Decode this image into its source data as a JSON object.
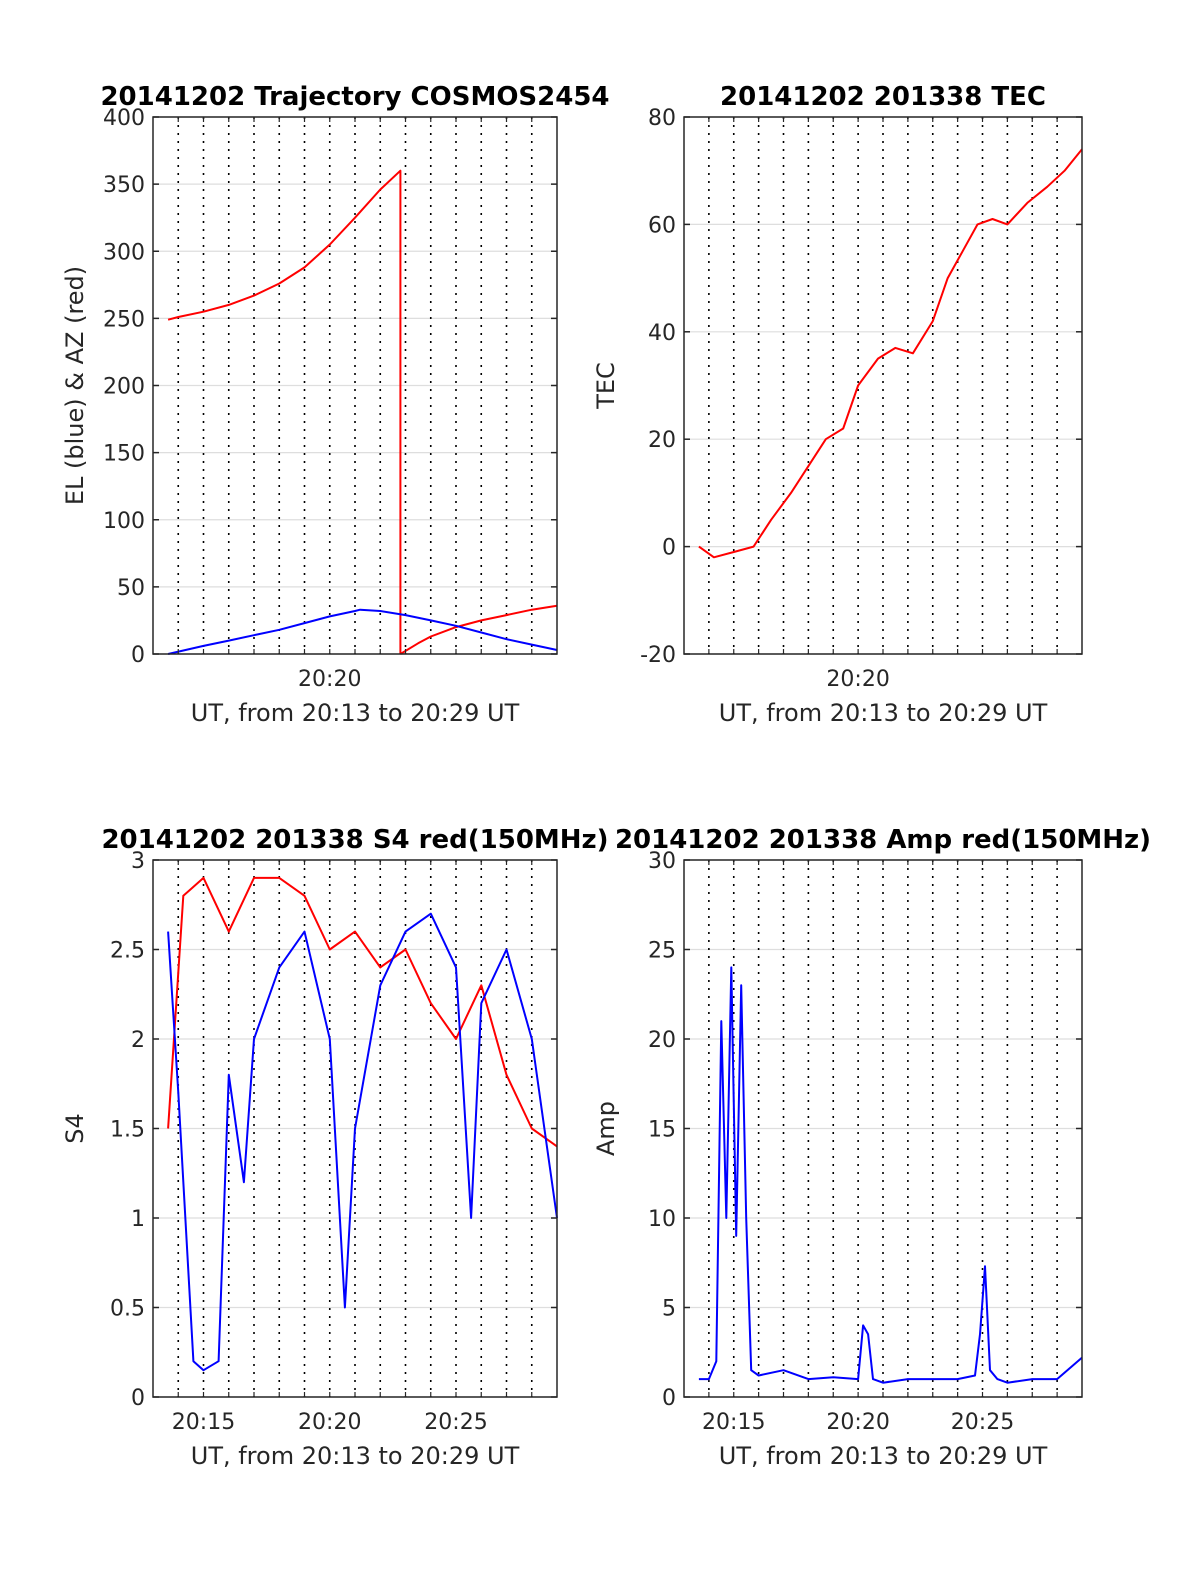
{
  "chart_data": [
    {
      "id": "trajectory",
      "type": "line",
      "title": "20141202 Trajectory COSMOS2454",
      "xlabel": "UT, from 20:13 to 20:29 UT",
      "ylabel": "EL (blue) & AZ (red)",
      "xlim": [
        "20:13",
        "20:29"
      ],
      "ylim": [
        0,
        400
      ],
      "yticks": [
        0,
        50,
        100,
        150,
        200,
        250,
        300,
        350,
        400
      ],
      "xticks": [
        {
          "at": "20:20",
          "label": "20:20"
        }
      ],
      "grid": true,
      "series": [
        {
          "color": "#ff0000",
          "x": [
            "20:13.6",
            "20:14",
            "20:15",
            "20:16",
            "20:17",
            "20:18",
            "20:19",
            "20:20",
            "20:21",
            "20:22",
            "20:22.8",
            "20:22.8"
          ],
          "y": [
            249,
            251,
            255,
            260,
            267,
            276,
            288,
            305,
            325,
            346,
            360,
            0
          ]
        },
        {
          "color": "#ff0000",
          "x": [
            "20:22.8",
            "20:23.5",
            "20:24",
            "20:25",
            "20:26",
            "20:27",
            "20:28",
            "20:29"
          ],
          "y": [
            0,
            8,
            13,
            20,
            25,
            29,
            33,
            36
          ]
        },
        {
          "color": "#0000ff",
          "x": [
            "20:13.6",
            "20:15",
            "20:16",
            "20:17",
            "20:18",
            "20:19",
            "20:20",
            "20:21",
            "20:21.2",
            "20:22",
            "20:23",
            "20:24",
            "20:25",
            "20:26",
            "20:27",
            "20:28",
            "20:29"
          ],
          "y": [
            0,
            6,
            10,
            14,
            18,
            23,
            28,
            32,
            33,
            32,
            29,
            25,
            21,
            16,
            11,
            7,
            3
          ]
        }
      ]
    },
    {
      "id": "tec",
      "type": "line",
      "title": "20141202 201338 TEC",
      "xlabel": "UT, from 20:13 to 20:29 UT",
      "ylabel": "TEC",
      "xlim": [
        "20:13",
        "20:29"
      ],
      "ylim": [
        -20,
        80
      ],
      "yticks": [
        -20,
        0,
        20,
        40,
        60,
        80
      ],
      "xticks": [
        {
          "at": "20:20",
          "label": "20:20"
        }
      ],
      "grid": true,
      "series": [
        {
          "color": "#ff0000",
          "x": [
            "20:13.6",
            "20:14.2",
            "20:15",
            "20:15.8",
            "20:16.5",
            "20:17.3",
            "20:18",
            "20:18.7",
            "20:19.4",
            "20:20",
            "20:20.8",
            "20:21.5",
            "20:22.2",
            "20:23",
            "20:23.6",
            "20:24.2",
            "20:24.8",
            "20:25.4",
            "20:26",
            "20:26.8",
            "20:27.6",
            "20:28.3",
            "20:29"
          ],
          "y": [
            0,
            -2,
            -1,
            0,
            5,
            10,
            15,
            20,
            22,
            30,
            35,
            37,
            36,
            42,
            50,
            55,
            60,
            61,
            60,
            64,
            67,
            70,
            74
          ]
        }
      ]
    },
    {
      "id": "s4",
      "type": "line",
      "title": "20141202 201338 S4 red(150MHz)",
      "xlabel": "UT, from 20:13 to 20:29 UT",
      "ylabel": "S4",
      "xlim": [
        "20:13",
        "20:29"
      ],
      "ylim": [
        0,
        3
      ],
      "yticks": [
        0,
        0.5,
        1,
        1.5,
        2,
        2.5,
        3
      ],
      "ytick_labels": [
        "0",
        "0.5",
        "1",
        "1.5",
        "2",
        "2.5",
        "3"
      ],
      "xticks": [
        {
          "at": "20:15",
          "label": "20:15"
        },
        {
          "at": "20:20",
          "label": "20:20"
        },
        {
          "at": "20:25",
          "label": "20:25"
        }
      ],
      "grid": true,
      "series": [
        {
          "color": "#ff0000",
          "x": [
            "20:13.6",
            "20:14.2",
            "20:15",
            "20:16",
            "20:17",
            "20:18",
            "20:19",
            "20:20",
            "20:21",
            "20:22",
            "20:23",
            "20:24",
            "20:25",
            "20:26",
            "20:27",
            "20:28",
            "20:29"
          ],
          "y": [
            1.5,
            2.8,
            2.9,
            2.6,
            2.9,
            2.9,
            2.8,
            2.5,
            2.6,
            2.4,
            2.5,
            2.2,
            2.0,
            2.3,
            1.8,
            1.5,
            1.4
          ]
        },
        {
          "color": "#0000ff",
          "x": [
            "20:13.6",
            "20:14",
            "20:14.6",
            "20:15",
            "20:15.6",
            "20:16",
            "20:16.6",
            "20:17",
            "20:18",
            "20:19",
            "20:20",
            "20:20.6",
            "20:21",
            "20:22",
            "20:23",
            "20:24",
            "20:25",
            "20:25.6",
            "20:26",
            "20:27",
            "20:28",
            "20:28.6",
            "20:29"
          ],
          "y": [
            2.6,
            1.7,
            0.2,
            0.15,
            0.2,
            1.8,
            1.2,
            2.0,
            2.4,
            2.6,
            2.0,
            0.5,
            1.5,
            2.3,
            2.6,
            2.7,
            2.4,
            1.0,
            2.2,
            2.5,
            2.0,
            1.4,
            1.0
          ]
        }
      ]
    },
    {
      "id": "amp",
      "type": "line",
      "title": "20141202 201338 Amp red(150MHz)",
      "xlabel": "UT, from 20:13 to 20:29 UT",
      "ylabel": "Amp",
      "xlim": [
        "20:13",
        "20:29"
      ],
      "ylim": [
        0,
        30
      ],
      "yticks": [
        0,
        5,
        10,
        15,
        20,
        25,
        30
      ],
      "xticks": [
        {
          "at": "20:15",
          "label": "20:15"
        },
        {
          "at": "20:20",
          "label": "20:20"
        },
        {
          "at": "20:25",
          "label": "20:25"
        }
      ],
      "grid": true,
      "series": [
        {
          "color": "#0000ff",
          "x": [
            "20:13.6",
            "20:14",
            "20:14.3",
            "20:14.5",
            "20:14.7",
            "20:14.9",
            "20:15.1",
            "20:15.3",
            "20:15.5",
            "20:15.7",
            "20:16",
            "20:17",
            "20:18",
            "20:19",
            "20:20",
            "20:20.2",
            "20:20.4",
            "20:20.6",
            "20:21",
            "20:22",
            "20:23",
            "20:24",
            "20:24.7",
            "20:24.9",
            "20:25.1",
            "20:25.3",
            "20:25.6",
            "20:26",
            "20:27",
            "20:28",
            "20:29"
          ],
          "y": [
            1,
            1,
            2,
            21,
            10,
            24,
            9,
            23,
            10,
            1.5,
            1.2,
            1.5,
            1,
            1.1,
            1,
            4,
            3.5,
            1,
            0.8,
            1,
            1,
            1,
            1.2,
            3.5,
            7.3,
            1.5,
            1,
            0.8,
            1,
            1,
            2.2
          ]
        }
      ]
    }
  ]
}
